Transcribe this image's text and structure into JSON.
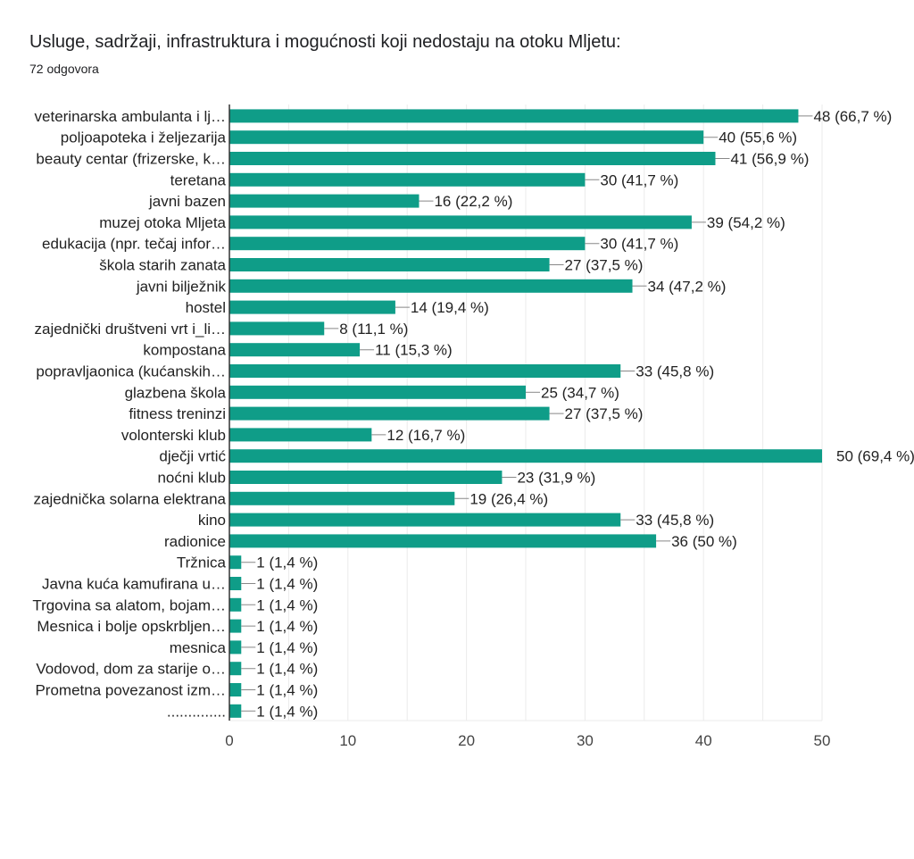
{
  "header": {
    "title": "Usluge, sadržaji, infrastruktura i mogućnosti koji nedostaju na otoku Mljetu:",
    "response_count": "72 odgovora"
  },
  "colors": {
    "bar": "#0f9d88",
    "grid": "#ebebeb",
    "axis": "#333333",
    "text": "#222222",
    "tick_text": "#444444"
  },
  "chart_data": {
    "type": "bar",
    "orientation": "horizontal",
    "title": "Usluge, sadržaji, infrastruktura i mogućnosti koji nedostaju na otoku Mljetu:",
    "subtitle": "72 odgovora",
    "xlabel": "",
    "ylabel": "",
    "xlim": [
      0,
      50
    ],
    "x_ticks": [
      "0",
      "10",
      "20",
      "30",
      "40",
      "50"
    ],
    "grid": true,
    "categories": [
      "veterinarska ambulanta i lj…",
      "poljoapoteka i željezarija",
      "beauty centar (frizerske, k…",
      "teretana",
      "javni bazen",
      "muzej otoka Mljeta",
      "edukacija (npr. tečaj infor…",
      "škola starih zanata",
      "javni bilježnik",
      "hostel",
      "zajednički društveni vrt i_li…",
      "kompostana",
      "popravljaonica (kućanskih…",
      "glazbena škola",
      "fitness treninzi",
      "volonterski klub",
      "dječji vrtić",
      "noćni klub",
      "zajednička solarna elektrana",
      "kino",
      "radionice",
      "Tržnica",
      "Javna kuća kamufirana u…",
      "Trgovina sa alatom, bojam…",
      "Mesnica i bolje opskrbljen…",
      "mesnica",
      "Vodovod, dom za starije o…",
      "Prometna povezanost izm…",
      ".............."
    ],
    "values": [
      48,
      40,
      41,
      30,
      16,
      39,
      30,
      27,
      34,
      14,
      8,
      11,
      33,
      25,
      27,
      12,
      50,
      23,
      19,
      33,
      36,
      1,
      1,
      1,
      1,
      1,
      1,
      1,
      1
    ],
    "value_labels": [
      "48 (66,7 %)",
      "40 (55,6 %)",
      "41 (56,9 %)",
      "30 (41,7 %)",
      "16 (22,2 %)",
      "39 (54,2 %)",
      "30 (41,7 %)",
      "27 (37,5 %)",
      "34 (47,2 %)",
      "14 (19,4 %)",
      "8 (11,1 %)",
      "11 (15,3 %)",
      "33 (45,8 %)",
      "25 (34,7 %)",
      "27 (37,5 %)",
      "12 (16,7 %)",
      "50 (69,4 %)",
      "23 (31,9 %)",
      "19 (26,4 %)",
      "33 (45,8 %)",
      "36 (50 %)",
      "1 (1,4 %)",
      "1 (1,4 %)",
      "1 (1,4 %)",
      "1 (1,4 %)",
      "1 (1,4 %)",
      "1 (1,4 %)",
      "1 (1,4 %)",
      "1 (1,4 %)"
    ]
  }
}
